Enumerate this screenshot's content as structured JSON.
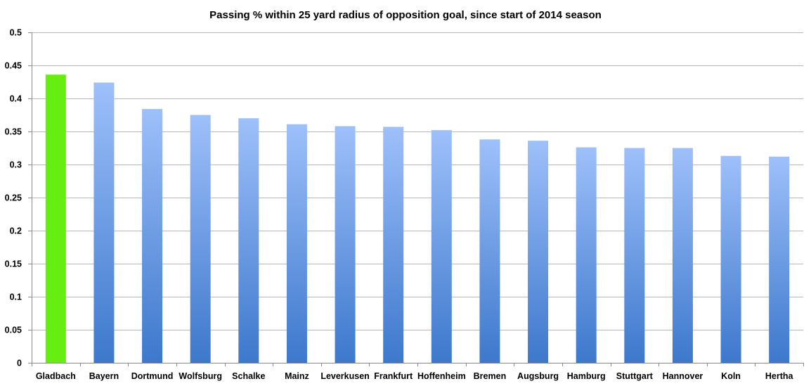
{
  "chart_data": {
    "type": "bar",
    "title": "Passing % within 25 yard radius of opposition goal, since start of 2014 season",
    "xlabel": "",
    "ylabel": "",
    "ylim": [
      0,
      0.5
    ],
    "yticks": [
      "0",
      "0.05",
      "0.1",
      "0.15",
      "0.2",
      "0.25",
      "0.3",
      "0.35",
      "0.4",
      "0.45",
      "0.5"
    ],
    "ytick_values": [
      0,
      0.05,
      0.1,
      0.15,
      0.2,
      0.25,
      0.3,
      0.35,
      0.4,
      0.45,
      0.5
    ],
    "grid": true,
    "legend": "none",
    "categories": [
      "Gladbach",
      "Bayern",
      "Dortmund",
      "Wolfsburg",
      "Schalke",
      "Mainz",
      "Leverkusen",
      "Frankfurt",
      "Hoffenheim",
      "Bremen",
      "Augsburg",
      "Hamburg",
      "Stuttgart",
      "Hannover",
      "Koln",
      "Hertha"
    ],
    "values": [
      0.436,
      0.424,
      0.384,
      0.375,
      0.37,
      0.361,
      0.358,
      0.357,
      0.352,
      0.338,
      0.336,
      0.326,
      0.325,
      0.325,
      0.313,
      0.312
    ],
    "highlight_index": 0,
    "colors": {
      "highlight": "#66ee11",
      "bar_top": "#9ec0fa",
      "bar_bottom": "#3d78cc",
      "grid": "#b8b8b8",
      "axis": "#8a8a8a"
    }
  }
}
